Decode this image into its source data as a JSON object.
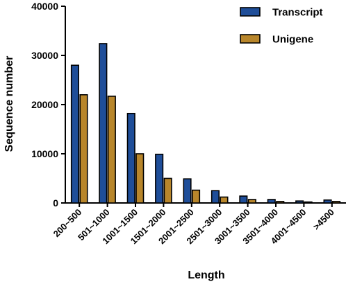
{
  "chart_data": {
    "type": "bar",
    "title": "",
    "xlabel": "Length",
    "ylabel": "Sequence number",
    "ylim": [
      0,
      40000
    ],
    "yticks": [
      "0",
      "10000",
      "20000",
      "30000",
      "40000"
    ],
    "grid": false,
    "legend_position": "top-right",
    "categories": [
      "200~500",
      "501~1000",
      "1001~1500",
      "1501~2000",
      "2001~2500",
      "2501~3000",
      "3001~3500",
      "3501~4000",
      "4001~4500",
      ">4500"
    ],
    "series": [
      {
        "name": "Transcript",
        "color": "#1f4e99",
        "values": [
          28000,
          32400,
          18200,
          9900,
          4900,
          2500,
          1400,
          700,
          400,
          600
        ]
      },
      {
        "name": "Unigene",
        "color": "#b8862b",
        "values": [
          22000,
          21700,
          10000,
          5000,
          2600,
          1200,
          700,
          300,
          200,
          300
        ]
      }
    ]
  }
}
